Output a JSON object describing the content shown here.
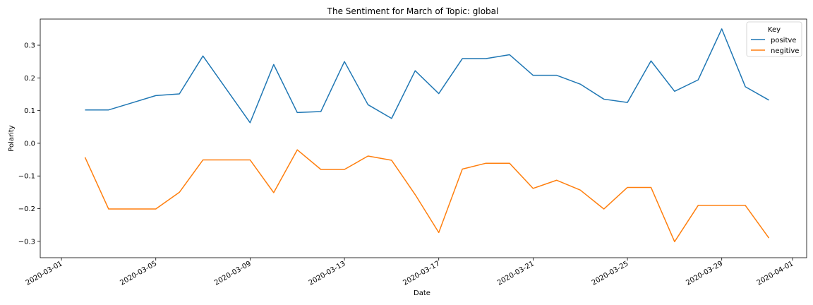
{
  "chart_data": {
    "type": "line",
    "title": "The Sentiment for March of Topic: global",
    "xlabel": "Date",
    "ylabel": "Polarity",
    "xlim": [
      "2020-03-01",
      "2020-04-01"
    ],
    "ylim": [
      -0.35,
      0.38
    ],
    "grid": false,
    "legend_title": "Key",
    "legend_position": "top-right",
    "x_ticks": [
      "2020-03-01",
      "2020-03-05",
      "2020-03-09",
      "2020-03-13",
      "2020-03-17",
      "2020-03-21",
      "2020-03-25",
      "2020-03-29",
      "2020-04-01"
    ],
    "y_ticks": [
      -0.3,
      -0.2,
      -0.1,
      0.0,
      0.1,
      0.2,
      0.3
    ],
    "y_tick_labels": [
      "−0.3",
      "−0.2",
      "−0.1",
      "0.0",
      "0.1",
      "0.2",
      "0.3"
    ],
    "x": [
      "2020-03-02",
      "2020-03-03",
      "2020-03-04",
      "2020-03-05",
      "2020-03-06",
      "2020-03-07",
      "2020-03-08",
      "2020-03-09",
      "2020-03-10",
      "2020-03-11",
      "2020-03-12",
      "2020-03-13",
      "2020-03-14",
      "2020-03-15",
      "2020-03-16",
      "2020-03-17",
      "2020-03-18",
      "2020-03-19",
      "2020-03-20",
      "2020-03-21",
      "2020-03-22",
      "2020-03-23",
      "2020-03-24",
      "2020-03-25",
      "2020-03-26",
      "2020-03-27",
      "2020-03-28",
      "2020-03-29",
      "2020-03-30",
      "2020-03-31"
    ],
    "series": [
      {
        "name": "positve",
        "color": "#1f77b4",
        "values": [
          0.102,
          0.102,
          0.124,
          0.146,
          0.151,
          0.267,
          0.165,
          0.063,
          0.241,
          0.094,
          0.097,
          0.25,
          0.118,
          0.076,
          0.222,
          0.152,
          0.259,
          0.259,
          0.271,
          0.208,
          0.208,
          0.181,
          0.135,
          0.125,
          0.252,
          0.159,
          0.194,
          0.35,
          0.173,
          0.132
        ]
      },
      {
        "name": "negitive",
        "color": "#ff7f0e",
        "values": [
          -0.043,
          -0.201,
          -0.201,
          -0.201,
          -0.15,
          -0.051,
          -0.051,
          -0.051,
          -0.151,
          -0.02,
          -0.08,
          -0.08,
          -0.039,
          -0.052,
          -0.157,
          -0.273,
          -0.079,
          -0.061,
          -0.061,
          -0.138,
          -0.113,
          -0.143,
          -0.201,
          -0.135,
          -0.135,
          -0.301,
          -0.19,
          -0.19,
          -0.19,
          -0.29
        ]
      }
    ]
  }
}
